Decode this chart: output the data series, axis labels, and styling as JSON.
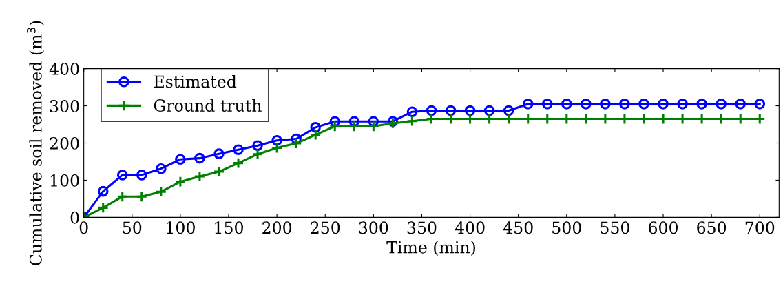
{
  "chart_data": {
    "type": "line",
    "xlabel": "Time (min)",
    "ylabel": "Cumulative soil removed (m$^{3}$)",
    "x": [
      0,
      20,
      40,
      60,
      80,
      100,
      120,
      140,
      160,
      180,
      200,
      220,
      240,
      260,
      280,
      300,
      320,
      340,
      360,
      380,
      400,
      420,
      440,
      460,
      480,
      500,
      520,
      540,
      560,
      580,
      600,
      620,
      640,
      660,
      680,
      700
    ],
    "series": [
      {
        "name": "Estimated",
        "color": "#0000ff",
        "marker": "circle",
        "values": [
          0,
          70,
          114,
          114,
          131,
          156,
          159,
          171,
          182,
          193,
          207,
          211,
          242,
          258,
          258,
          258,
          258,
          284,
          287,
          287,
          287,
          287,
          287,
          305,
          305,
          305,
          305,
          305,
          305,
          305,
          305,
          305,
          305,
          305,
          305,
          305
        ]
      },
      {
        "name": "Ground truth",
        "color": "#008000",
        "marker": "cross",
        "values": [
          0,
          26,
          56,
          56,
          69,
          96,
          110,
          123,
          146,
          170,
          187,
          199,
          222,
          245,
          245,
          245,
          253,
          259,
          265,
          265,
          265,
          265,
          265,
          265,
          265,
          265,
          265,
          265,
          265,
          265,
          265,
          265,
          265,
          265,
          265,
          265
        ]
      }
    ],
    "xlim": [
      0,
      720
    ],
    "ylim": [
      0,
      400
    ],
    "xticks": [
      0,
      50,
      100,
      150,
      200,
      250,
      300,
      350,
      400,
      450,
      500,
      550,
      600,
      650,
      700
    ],
    "yticks": [
      0,
      100,
      200,
      300,
      400
    ],
    "grid": false,
    "legend": "top left",
    "line_style": "solid"
  }
}
